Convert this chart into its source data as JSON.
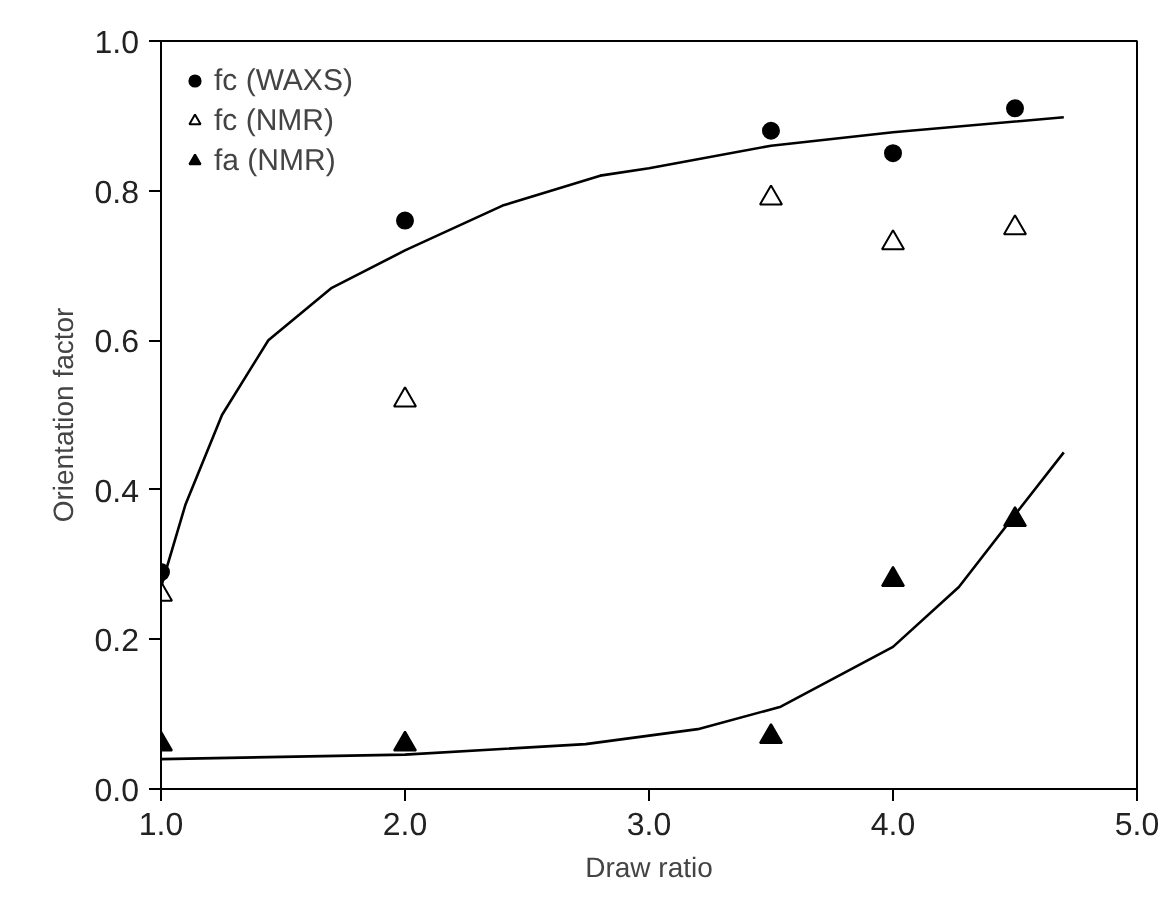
{
  "chart_data": {
    "type": "scatter",
    "xlabel": "Draw ratio",
    "ylabel": "Orientation factor",
    "xlim": [
      1,
      5
    ],
    "ylim": [
      0,
      1
    ],
    "xticks": [
      {
        "value": 1,
        "label": "1.0"
      },
      {
        "value": 2,
        "label": "2.0"
      },
      {
        "value": 3,
        "label": "3.0"
      },
      {
        "value": 4,
        "label": "4.0"
      },
      {
        "value": 5,
        "label": "5.0"
      }
    ],
    "yticks": [
      {
        "value": 0,
        "label": "0.0"
      },
      {
        "value": 0.2,
        "label": "0.2"
      },
      {
        "value": 0.4,
        "label": "0.4"
      },
      {
        "value": 0.6,
        "label": "0.6"
      },
      {
        "value": 0.8,
        "label": "0.8"
      },
      {
        "value": 1,
        "label": "1.0"
      }
    ],
    "x": [
      1,
      2,
      3.5,
      4,
      4.5
    ],
    "grid": false,
    "legend": "top left",
    "series": [
      {
        "name": "fc (WAXS)",
        "color": "#000000",
        "marker": "circle",
        "values": [
          0.29,
          0.76,
          0.88,
          0.85,
          0.91
        ]
      },
      {
        "name": "fc (NMR)",
        "color": "#ffffff",
        "marker": "triangle",
        "values": [
          0.26,
          0.52,
          0.79,
          0.73,
          0.75
        ]
      },
      {
        "name": "fa (NMR)",
        "color": "#000000",
        "marker": "triangle",
        "values": [
          0.06,
          0.06,
          0.07,
          0.28,
          0.36
        ]
      },
      {
        "type": "line",
        "color": "#000000",
        "line_style": "solid",
        "x": [
          1,
          1.1,
          1.25,
          1.44,
          1.7,
          2,
          2.4,
          2.8,
          3,
          3.5,
          4,
          4.7
        ],
        "values": [
          0.27,
          0.38,
          0.5,
          0.6,
          0.67,
          0.72,
          0.78,
          0.82,
          0.83,
          0.86,
          0.878,
          0.898
        ]
      },
      {
        "type": "line",
        "color": "#000000",
        "line_style": "solid",
        "x": [
          1,
          2,
          2.74,
          3.2,
          3.54,
          4,
          4.27,
          4.52,
          4.7
        ],
        "values": [
          0.04,
          0.046,
          0.06,
          0.08,
          0.11,
          0.19,
          0.27,
          0.375,
          0.45
        ]
      }
    ]
  }
}
